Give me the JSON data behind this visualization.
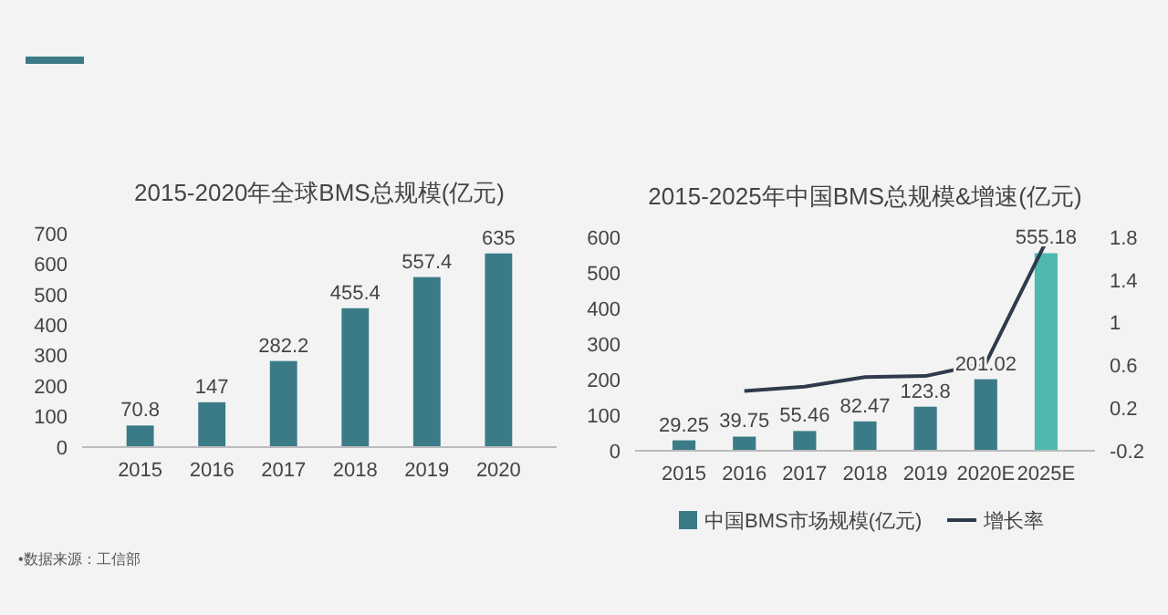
{
  "chart_data": [
    {
      "type": "bar",
      "title": "2015-2020年全球BMS总规模(亿元)",
      "categories": [
        "2015",
        "2016",
        "2017",
        "2018",
        "2019",
        "2020"
      ],
      "series": [
        {
          "color": "#3a7b87",
          "values": [
            70.8,
            147,
            282.2,
            455.4,
            557.4,
            635
          ]
        }
      ],
      "ylim": [
        0,
        700
      ],
      "yticks": [
        0,
        100,
        200,
        300,
        400,
        500,
        600,
        700
      ],
      "data_labels": true,
      "grid": false,
      "legend": false,
      "annotations": [
        "•数据来源：工信部"
      ]
    },
    {
      "type": "bar",
      "title": "2015-2025年中国BMS总规模&增速(亿元)",
      "categories": [
        "2015",
        "2016",
        "2017",
        "2018",
        "2019",
        "2020E",
        "2025E"
      ],
      "series": [
        {
          "name": "中国BMS市场规模(亿元)",
          "color": "#3a7b87",
          "colors": [
            "#3a7b87",
            "#3a7b87",
            "#3a7b87",
            "#3a7b87",
            "#3a7b87",
            "#3a7b87",
            "#4fb9b0"
          ],
          "values": [
            29.25,
            39.75,
            55.46,
            82.47,
            123.8,
            201.02,
            555.18
          ],
          "value_labels": [
            "29.25",
            "39.75",
            "55.46",
            "82.47",
            "123.8",
            "201.02",
            "555.18"
          ]
        },
        {
          "name": "增长率",
          "type": "line",
          "axis": "y2",
          "color": "#2f3a4c",
          "values": [
            null,
            0.36,
            0.4,
            0.49,
            0.5,
            0.62,
            1.76
          ]
        }
      ],
      "ylim": [
        0,
        600
      ],
      "yticks": [
        0,
        100,
        200,
        300,
        400,
        500,
        600
      ],
      "y2lim": [
        -0.2,
        1.8
      ],
      "y2ticks": [
        -0.2,
        0.2,
        0.6,
        1,
        1.4,
        1.8
      ],
      "grid": false,
      "legend": "bottom",
      "marker": "none",
      "line_style": "solid"
    }
  ]
}
